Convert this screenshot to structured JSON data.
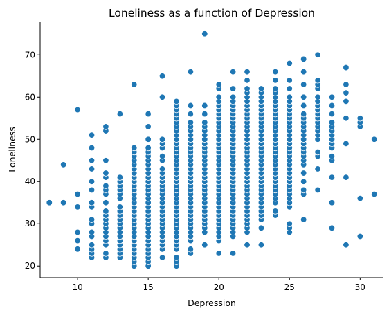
{
  "chart_data": {
    "type": "scatter",
    "title": "Loneliness as a function of Depression",
    "xlabel": "Depression",
    "ylabel": "Loneliness",
    "xlim": [
      7.35,
      31.65
    ],
    "ylim": [
      17.25,
      77.75
    ],
    "xticks": [
      10,
      15,
      20,
      25,
      30
    ],
    "yticks": [
      20,
      30,
      40,
      50,
      60,
      70
    ],
    "grid": false,
    "color": "#1f77b4",
    "columns": [
      {
        "x": 8,
        "y": [
          35
        ]
      },
      {
        "x": 9,
        "y": [
          35,
          44
        ]
      },
      {
        "x": 10,
        "y": [
          24,
          26,
          28,
          34,
          37,
          57
        ]
      },
      {
        "x": 11,
        "y": [
          22,
          23,
          24,
          25,
          27,
          28,
          30,
          31,
          34,
          35,
          38,
          40,
          43,
          45,
          48,
          51
        ]
      },
      {
        "x": 12,
        "y": [
          22,
          23,
          25,
          26,
          27,
          28,
          29,
          30,
          31,
          32,
          33,
          35,
          37,
          38,
          39,
          41,
          42,
          45,
          52,
          53
        ]
      },
      {
        "x": 13,
        "y": [
          22,
          23,
          24,
          25,
          26,
          27,
          28,
          29,
          30,
          31,
          32,
          33,
          34,
          36,
          37,
          38,
          39,
          40,
          41,
          56
        ]
      },
      {
        "x": 14,
        "y": [
          20,
          21,
          22,
          23,
          24,
          25,
          26,
          27,
          28,
          29,
          30,
          31,
          32,
          33,
          34,
          35,
          36,
          37,
          38,
          39,
          40,
          41,
          42,
          43,
          44,
          45,
          46,
          47,
          48,
          63
        ]
      },
      {
        "x": 15,
        "y": [
          20,
          21,
          22,
          23,
          24,
          25,
          26,
          27,
          28,
          29,
          30,
          31,
          32,
          33,
          34,
          35,
          36,
          37,
          38,
          39,
          40,
          41,
          42,
          43,
          44,
          45,
          46,
          47,
          48,
          50,
          53,
          56
        ]
      },
      {
        "x": 16,
        "y": [
          22,
          24,
          25,
          26,
          27,
          28,
          29,
          30,
          31,
          32,
          33,
          34,
          35,
          36,
          37,
          38,
          39,
          40,
          41,
          42,
          43,
          45,
          46,
          48,
          49,
          50,
          60,
          65
        ]
      },
      {
        "x": 17,
        "y": [
          20,
          21,
          22,
          24,
          25,
          26,
          27,
          28,
          29,
          30,
          31,
          32,
          33,
          34,
          35,
          36,
          37,
          38,
          39,
          40,
          41,
          42,
          43,
          44,
          45,
          46,
          47,
          48,
          49,
          50,
          51,
          52,
          53,
          54,
          55,
          56,
          57,
          58,
          59
        ]
      },
      {
        "x": 18,
        "y": [
          23,
          24,
          26,
          27,
          28,
          29,
          30,
          31,
          32,
          33,
          34,
          35,
          36,
          37,
          38,
          39,
          40,
          41,
          42,
          43,
          44,
          45,
          46,
          47,
          48,
          49,
          50,
          51,
          52,
          53,
          54,
          56,
          58,
          66
        ]
      },
      {
        "x": 19,
        "y": [
          25,
          28,
          29,
          30,
          31,
          32,
          33,
          34,
          35,
          36,
          37,
          38,
          39,
          40,
          41,
          42,
          43,
          44,
          45,
          46,
          47,
          48,
          49,
          50,
          51,
          52,
          53,
          54,
          56,
          58,
          75
        ]
      },
      {
        "x": 20,
        "y": [
          23,
          26,
          27,
          28,
          29,
          30,
          31,
          32,
          33,
          34,
          35,
          36,
          37,
          38,
          39,
          40,
          41,
          42,
          43,
          44,
          45,
          46,
          47,
          48,
          49,
          50,
          51,
          52,
          53,
          54,
          55,
          56,
          57,
          58,
          59,
          60,
          62,
          63
        ]
      },
      {
        "x": 21,
        "y": [
          23,
          27,
          28,
          29,
          30,
          31,
          32,
          33,
          34,
          35,
          36,
          37,
          38,
          39,
          40,
          41,
          42,
          43,
          44,
          45,
          46,
          47,
          48,
          49,
          50,
          51,
          52,
          53,
          54,
          55,
          56,
          57,
          58,
          59,
          60,
          62,
          66
        ]
      },
      {
        "x": 22,
        "y": [
          25,
          28,
          29,
          30,
          31,
          32,
          33,
          34,
          35,
          36,
          37,
          38,
          39,
          40,
          41,
          42,
          43,
          44,
          45,
          46,
          47,
          48,
          49,
          50,
          51,
          52,
          53,
          54,
          55,
          56,
          57,
          58,
          59,
          60,
          61,
          62,
          64,
          66
        ]
      },
      {
        "x": 23,
        "y": [
          25,
          29,
          31,
          32,
          33,
          34,
          35,
          36,
          37,
          38,
          39,
          40,
          41,
          42,
          43,
          44,
          45,
          46,
          47,
          48,
          49,
          50,
          51,
          52,
          53,
          54,
          55,
          56,
          57,
          58,
          59,
          60,
          61,
          62
        ]
      },
      {
        "x": 24,
        "y": [
          32,
          33,
          35,
          36,
          37,
          38,
          39,
          40,
          41,
          42,
          43,
          44,
          45,
          46,
          47,
          48,
          49,
          50,
          51,
          52,
          53,
          54,
          55,
          56,
          57,
          58,
          59,
          60,
          61,
          62,
          64,
          66
        ]
      },
      {
        "x": 25,
        "y": [
          28,
          29,
          30,
          34,
          35,
          36,
          37,
          38,
          39,
          40,
          41,
          42,
          43,
          44,
          45,
          46,
          47,
          48,
          49,
          50,
          51,
          52,
          53,
          54,
          55,
          56,
          57,
          58,
          59,
          60,
          62,
          64,
          68
        ]
      },
      {
        "x": 26,
        "y": [
          31,
          37,
          38,
          40,
          42,
          44,
          45,
          46,
          47,
          48,
          49,
          50,
          51,
          52,
          53,
          54,
          55,
          56,
          58,
          60,
          63,
          66,
          69
        ]
      },
      {
        "x": 27,
        "y": [
          38,
          43,
          46,
          47,
          50,
          51,
          52,
          53,
          54,
          55,
          56,
          57,
          58,
          59,
          60,
          62,
          63,
          64,
          70
        ]
      },
      {
        "x": 28,
        "y": [
          29,
          35,
          41,
          45,
          46,
          48,
          49,
          50,
          51,
          52,
          53,
          54,
          56,
          58,
          60
        ]
      },
      {
        "x": 29,
        "y": [
          25,
          41,
          49,
          55,
          59,
          61,
          63,
          67
        ]
      },
      {
        "x": 30,
        "y": [
          27,
          36,
          53,
          54,
          55
        ]
      },
      {
        "x": 31,
        "y": [
          37,
          50
        ]
      }
    ]
  }
}
